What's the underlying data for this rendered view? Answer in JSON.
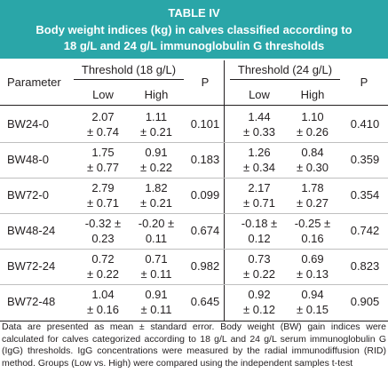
{
  "title": "TABLE IV",
  "subtitle_line1": "Body weight indices (kg) in calves classified according to",
  "subtitle_line2": "18 g/L and 24 g/L immunoglobulin G thresholds",
  "headers": {
    "parameter": "Parameter",
    "threshold_18": "Threshold (18 g/L)",
    "threshold_24": "Threshold (24 g/L)",
    "p": "P",
    "low": "Low",
    "high": "High"
  },
  "rows": [
    {
      "param": "BW24-0",
      "low18_a": "2.07",
      "low18_b": "± 0.74",
      "high18_a": "1.11",
      "high18_b": "± 0.21",
      "p18": "0.101",
      "low24_a": "1.44",
      "low24_b": "± 0.33",
      "high24_a": "1.10",
      "high24_b": "± 0.26",
      "p24": "0.410"
    },
    {
      "param": "BW48-0",
      "low18_a": "1.75",
      "low18_b": "± 0.77",
      "high18_a": "0.91",
      "high18_b": "± 0.22",
      "p18": "0.183",
      "low24_a": "1.26",
      "low24_b": "± 0.34",
      "high24_a": "0.84",
      "high24_b": "± 0.30",
      "p24": "0.359"
    },
    {
      "param": "BW72-0",
      "low18_a": "2.79",
      "low18_b": "± 0.71",
      "high18_a": "1.82",
      "high18_b": "± 0.21",
      "p18": "0.099",
      "low24_a": "2.17",
      "low24_b": "± 0.71",
      "high24_a": "1.78",
      "high24_b": "± 0.27",
      "p24": "0.354"
    },
    {
      "param": "BW48-24",
      "low18_a": "-0.32 ±",
      "low18_b": "0.23",
      "high18_a": "-0.20 ±",
      "high18_b": "0.11",
      "p18": "0.674",
      "low24_a": "-0.18 ±",
      "low24_b": "0.12",
      "high24_a": "-0.25 ±",
      "high24_b": "0.16",
      "p24": "0.742"
    },
    {
      "param": "BW72-24",
      "low18_a": "0.72",
      "low18_b": "± 0.22",
      "high18_a": "0.71",
      "high18_b": "± 0.11",
      "p18": "0.982",
      "low24_a": "0.73",
      "low24_b": "± 0.22",
      "high24_a": "0.69",
      "high24_b": "± 0.13",
      "p24": "0.823"
    },
    {
      "param": "BW72-48",
      "low18_a": "1.04",
      "low18_b": "± 0.16",
      "high18_a": "0.91",
      "high18_b": "± 0.11",
      "p18": "0.645",
      "low24_a": "0.92",
      "low24_b": "± 0.12",
      "high24_a": "0.94",
      "high24_b": "± 0.15",
      "p24": "0.905"
    }
  ],
  "footnote": "Data are presented as mean ± standard error. Body weight (BW) gain indices were calculated for calves categorized according to 18 g/L and 24 g/L serum immunoglobulin G (IgG) thresholds. IgG concentrations were measured by the radial immunodiffusion (RID) method. Groups (Low vs. High) were compared using the independent samples t-test"
}
